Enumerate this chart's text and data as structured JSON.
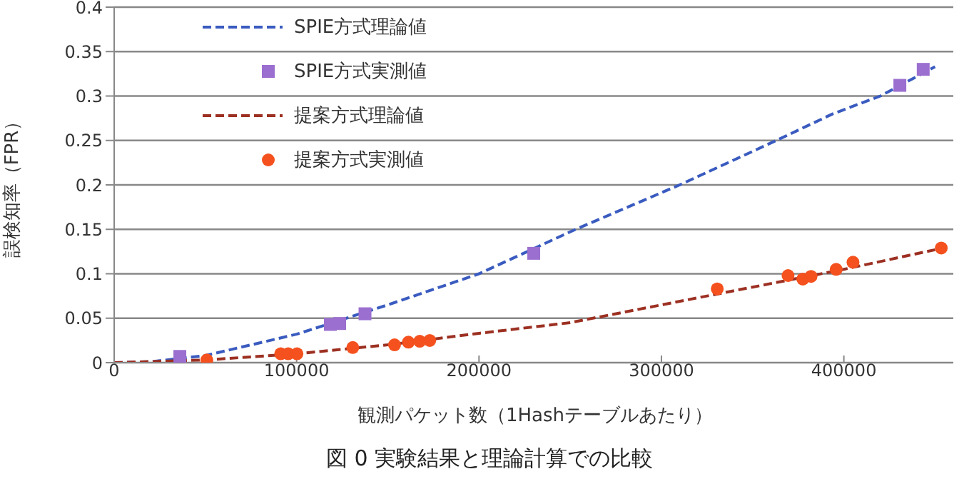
{
  "chart_data": {
    "type": "scatter",
    "xlabel": "観測パケット数（1Hashテーブルあたり）",
    "ylabel": "誤検知率（FPR）",
    "xlim": [
      0,
      460000
    ],
    "xticks": [
      0,
      100000,
      200000,
      300000,
      400000
    ],
    "ylim": [
      0,
      0.4
    ],
    "yticks": [
      0,
      0.05,
      0.1,
      0.15,
      0.2,
      0.25,
      0.3,
      0.35,
      0.4
    ],
    "grid": "y",
    "legend": "top left",
    "annotations": [
      "図 0 実験結果と理論計算での比較"
    ],
    "series": [
      {
        "name": "SPIE方式理論値",
        "type": "line",
        "line_style": "dashed",
        "marker": "none",
        "color": "#3a5bbf",
        "x": [
          0,
          20000,
          50000,
          100000,
          150000,
          200000,
          253000,
          310000,
          363000,
          394000,
          420000,
          450000
        ],
        "values": [
          0,
          0.001,
          0.008,
          0.032,
          0.065,
          0.1,
          0.15,
          0.2,
          0.25,
          0.28,
          0.3,
          0.333
        ]
      },
      {
        "name": "SPIE方式実測値",
        "marker": "square",
        "color": "#9b6fcf",
        "x": [
          36000,
          118500,
          123600,
          137500,
          230000,
          430700,
          443500
        ],
        "values": [
          0.007,
          0.043,
          0.044,
          0.055,
          0.123,
          0.312,
          0.33
        ]
      },
      {
        "name": "提案方式理論値",
        "type": "line",
        "line_style": "dashed",
        "marker": "none",
        "color": "#9c3022",
        "x": [
          0,
          50000,
          100000,
          150000,
          200000,
          250000,
          300000,
          350000,
          400000,
          450000
        ],
        "values": [
          0,
          0.003,
          0.01,
          0.02,
          0.033,
          0.045,
          0.065,
          0.085,
          0.105,
          0.127
        ]
      },
      {
        "name": "提案方式実測値",
        "marker": "circle",
        "color": "#f4511e",
        "x": [
          50800,
          91300,
          95400,
          100200,
          130800,
          153700,
          161300,
          167500,
          173000,
          330600,
          369400,
          377500,
          382000,
          395800,
          405000,
          453400
        ],
        "values": [
          0.003,
          0.01,
          0.01,
          0.01,
          0.017,
          0.02,
          0.023,
          0.024,
          0.025,
          0.083,
          0.098,
          0.094,
          0.097,
          0.105,
          0.113,
          0.129
        ]
      }
    ]
  }
}
